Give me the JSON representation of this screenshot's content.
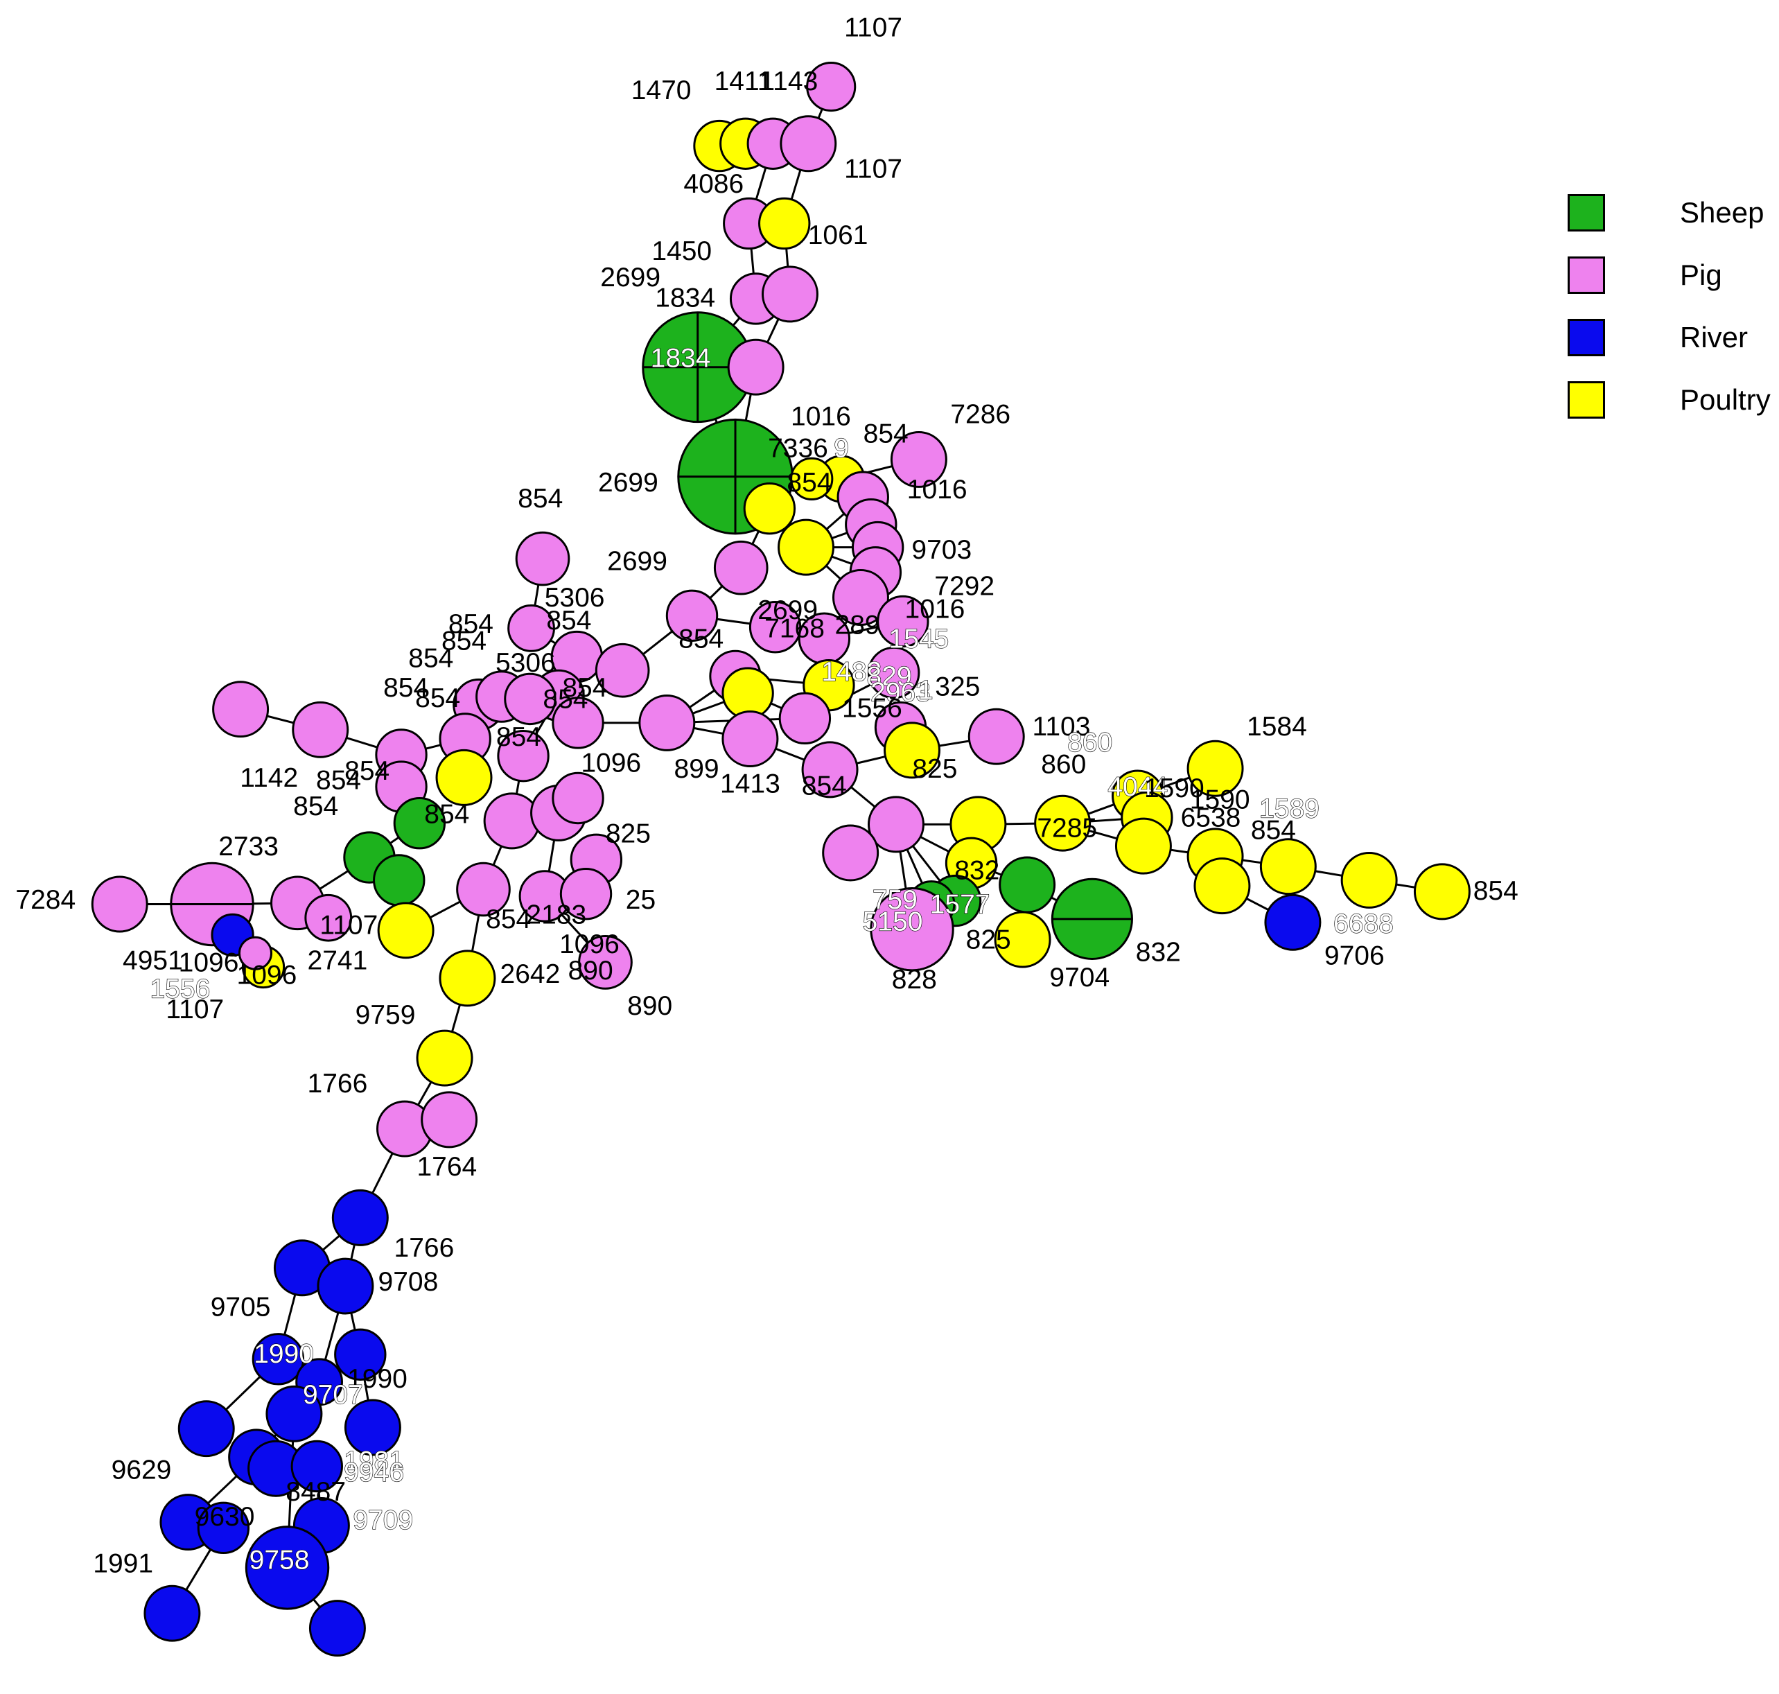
{
  "legend": [
    {
      "name": "Sheep",
      "color": "#1db21d"
    },
    {
      "name": "Pig",
      "color": "#ee82ee"
    },
    {
      "name": "River",
      "color": "#0a0aee"
    },
    {
      "name": "Poultry",
      "color": "#ffff00"
    }
  ],
  "labels": [
    "1107",
    "1470",
    "1411",
    "1143",
    "4086",
    "1107",
    "1061",
    "1450",
    "2699",
    "1834",
    "1834",
    "1016",
    "7286",
    "854",
    "7336",
    "9",
    "2699",
    "854",
    "1016",
    "9703",
    "7292",
    "854",
    "2699",
    "5306",
    "854",
    "1016",
    "2699",
    "854",
    "7168",
    "289",
    "1545",
    "854",
    "854",
    "5306",
    "854",
    "854",
    "854",
    "1482",
    "829",
    "2963",
    "1",
    "325",
    "1556",
    "1103",
    "860",
    "860",
    "1584",
    "1142",
    "854",
    "854",
    "854",
    "854",
    "854",
    "899",
    "1413",
    "825",
    "4044",
    "1590",
    "1590",
    "1589",
    "6538",
    "854",
    "854",
    "1096",
    "2733",
    "854",
    "854",
    "825",
    "832",
    "7285",
    "854",
    "7284",
    "1107",
    "759",
    "854",
    "2183",
    "25",
    "5150",
    "1577",
    "825",
    "9704",
    "832",
    "9706",
    "6688",
    "4951",
    "2741",
    "1096",
    "828",
    "1556",
    "1096",
    "1096",
    "1107",
    "890",
    "2642",
    "890",
    "9759",
    "1766",
    "1764",
    "1766",
    "9708",
    "9705",
    "1990",
    "1990",
    "9707",
    "1981",
    "9946",
    "9629",
    "8487",
    "9630",
    "9709",
    "1991",
    "9758"
  ]
}
